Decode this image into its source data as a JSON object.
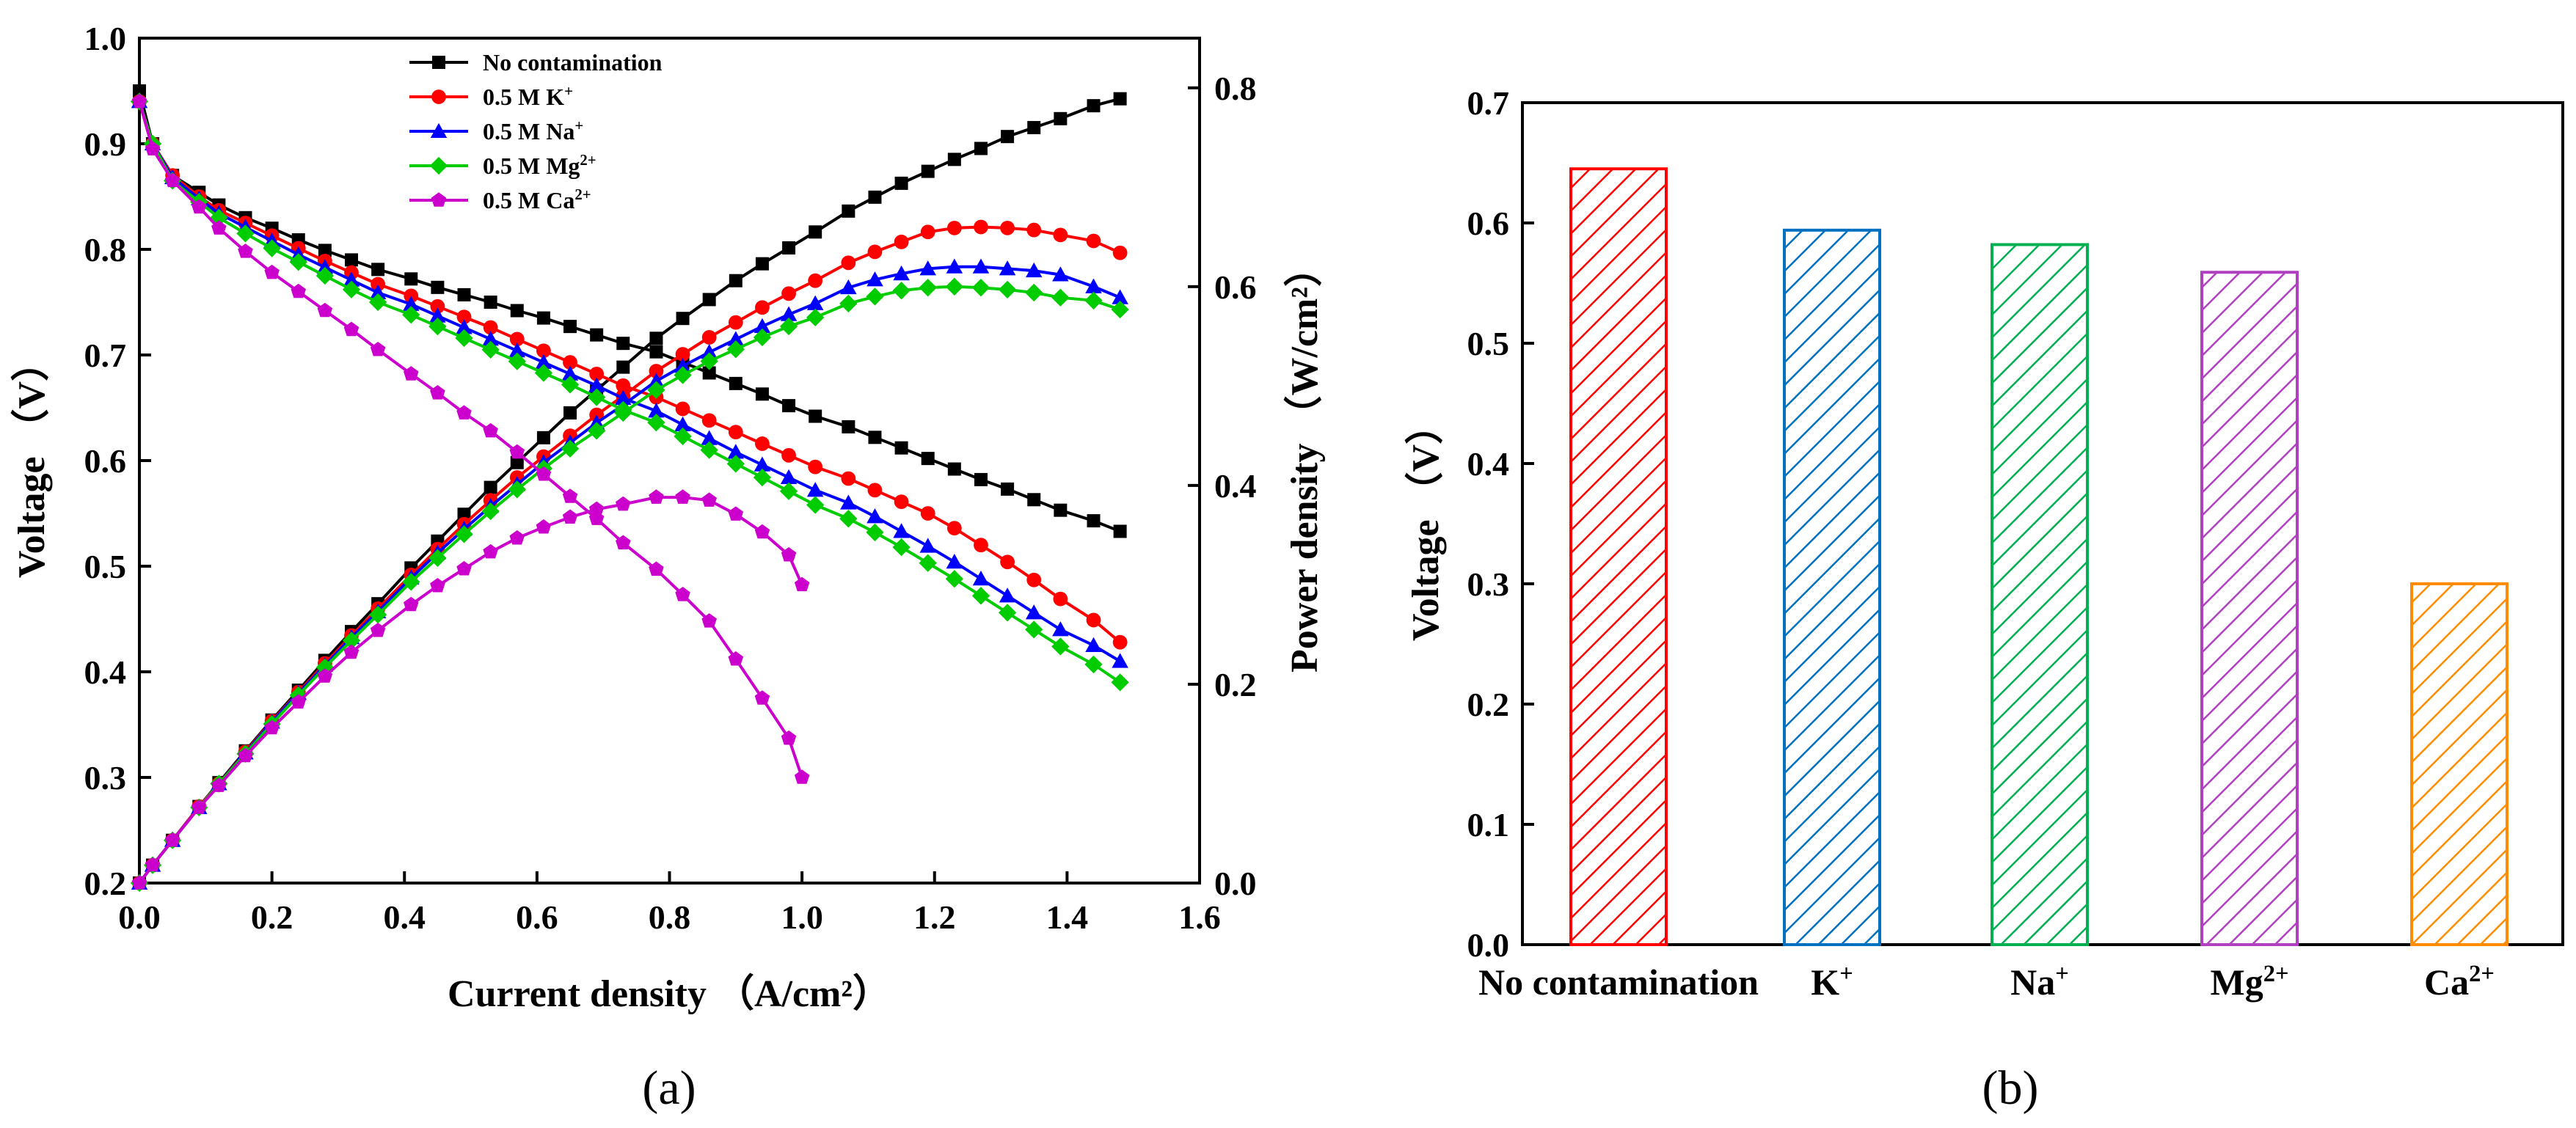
{
  "chart_data": [
    {
      "type": "line",
      "caption": "(a)",
      "xlabel": "Current density （A/cm²）",
      "ylabel": "Voltage （V）",
      "y2label": "Power density （W/cm²）",
      "xlim": [
        0.0,
        1.6
      ],
      "ylim": [
        0.2,
        1.0
      ],
      "y2lim": [
        0.0,
        0.85
      ],
      "xticks": [
        "0.0",
        "0.2",
        "0.4",
        "0.6",
        "0.8",
        "1.0",
        "1.2",
        "1.4",
        "1.6"
      ],
      "yticks": [
        "0.2",
        "0.3",
        "0.4",
        "0.5",
        "0.6",
        "0.7",
        "0.8",
        "0.9",
        "1.0"
      ],
      "y2ticks": [
        "0.0",
        "0.2",
        "0.4",
        "0.6",
        "0.8"
      ],
      "legend_position": "top-center",
      "series": [
        {
          "name": "No contamination",
          "legend_base": "No contamination",
          "legend_sup": "",
          "color": "#000000",
          "marker": "square",
          "x": [
            0.0,
            0.02,
            0.05,
            0.09,
            0.12,
            0.16,
            0.2,
            0.24,
            0.28,
            0.32,
            0.36,
            0.41,
            0.45,
            0.49,
            0.53,
            0.57,
            0.61,
            0.65,
            0.69,
            0.73,
            0.78,
            0.82,
            0.86,
            0.9,
            0.94,
            0.98,
            1.02,
            1.07,
            1.11,
            1.15,
            1.19,
            1.23,
            1.27,
            1.31,
            1.35,
            1.39,
            1.44,
            1.48
          ],
          "voltage": [
            0.95,
            0.9,
            0.87,
            0.854,
            0.842,
            0.83,
            0.82,
            0.809,
            0.799,
            0.79,
            0.781,
            0.772,
            0.764,
            0.757,
            0.75,
            0.742,
            0.735,
            0.727,
            0.719,
            0.711,
            0.703,
            0.693,
            0.683,
            0.673,
            0.663,
            0.652,
            0.642,
            0.632,
            0.622,
            0.612,
            0.602,
            0.592,
            0.582,
            0.573,
            0.563,
            0.553,
            0.543,
            0.533
          ],
          "power": [
            0.0,
            0.018,
            0.043,
            0.077,
            0.101,
            0.133,
            0.164,
            0.194,
            0.224,
            0.253,
            0.281,
            0.317,
            0.344,
            0.371,
            0.398,
            0.423,
            0.448,
            0.473,
            0.496,
            0.519,
            0.548,
            0.568,
            0.587,
            0.606,
            0.623,
            0.639,
            0.655,
            0.676,
            0.69,
            0.704,
            0.716,
            0.728,
            0.739,
            0.751,
            0.76,
            0.769,
            0.782,
            0.789
          ]
        },
        {
          "name": "0.5 M K+",
          "legend_base": "0.5 M K",
          "legend_sup": "+",
          "color": "#ff0000",
          "marker": "circle",
          "x": [
            0.0,
            0.02,
            0.05,
            0.09,
            0.12,
            0.16,
            0.2,
            0.24,
            0.28,
            0.32,
            0.36,
            0.41,
            0.45,
            0.49,
            0.53,
            0.57,
            0.61,
            0.65,
            0.69,
            0.73,
            0.78,
            0.82,
            0.86,
            0.9,
            0.94,
            0.98,
            1.02,
            1.07,
            1.11,
            1.15,
            1.19,
            1.23,
            1.27,
            1.31,
            1.35,
            1.39,
            1.44,
            1.48
          ],
          "voltage": [
            0.94,
            0.9,
            0.87,
            0.85,
            0.837,
            0.825,
            0.813,
            0.801,
            0.789,
            0.778,
            0.767,
            0.756,
            0.746,
            0.736,
            0.726,
            0.715,
            0.704,
            0.693,
            0.682,
            0.671,
            0.66,
            0.649,
            0.638,
            0.627,
            0.616,
            0.605,
            0.594,
            0.583,
            0.572,
            0.561,
            0.55,
            0.536,
            0.52,
            0.504,
            0.487,
            0.469,
            0.449,
            0.428
          ],
          "power": [
            0.0,
            0.018,
            0.043,
            0.077,
            0.1,
            0.132,
            0.163,
            0.192,
            0.221,
            0.249,
            0.276,
            0.31,
            0.336,
            0.361,
            0.385,
            0.408,
            0.429,
            0.45,
            0.471,
            0.49,
            0.515,
            0.532,
            0.549,
            0.564,
            0.579,
            0.593,
            0.606,
            0.624,
            0.635,
            0.645,
            0.655,
            0.659,
            0.66,
            0.659,
            0.657,
            0.652,
            0.646,
            0.634
          ]
        },
        {
          "name": "0.5 M Na+",
          "legend_base": "0.5 M Na",
          "legend_sup": "+",
          "color": "#0000ff",
          "marker": "triangle",
          "x": [
            0.0,
            0.02,
            0.05,
            0.09,
            0.12,
            0.16,
            0.2,
            0.24,
            0.28,
            0.32,
            0.36,
            0.41,
            0.45,
            0.49,
            0.53,
            0.57,
            0.61,
            0.65,
            0.69,
            0.73,
            0.78,
            0.82,
            0.86,
            0.9,
            0.94,
            0.98,
            1.02,
            1.07,
            1.11,
            1.15,
            1.19,
            1.23,
            1.27,
            1.31,
            1.35,
            1.39,
            1.44,
            1.48
          ],
          "voltage": [
            0.94,
            0.9,
            0.868,
            0.848,
            0.834,
            0.821,
            0.808,
            0.795,
            0.783,
            0.771,
            0.759,
            0.748,
            0.737,
            0.726,
            0.715,
            0.704,
            0.693,
            0.682,
            0.671,
            0.659,
            0.647,
            0.634,
            0.621,
            0.608,
            0.596,
            0.584,
            0.572,
            0.56,
            0.547,
            0.533,
            0.519,
            0.504,
            0.488,
            0.472,
            0.456,
            0.44,
            0.425,
            0.41
          ],
          "power": [
            0.0,
            0.018,
            0.043,
            0.076,
            0.1,
            0.131,
            0.162,
            0.191,
            0.219,
            0.247,
            0.273,
            0.307,
            0.332,
            0.356,
            0.379,
            0.401,
            0.423,
            0.443,
            0.463,
            0.481,
            0.505,
            0.52,
            0.534,
            0.547,
            0.56,
            0.572,
            0.583,
            0.599,
            0.607,
            0.613,
            0.618,
            0.62,
            0.62,
            0.618,
            0.616,
            0.612,
            0.6,
            0.589
          ]
        },
        {
          "name": "0.5 M Mg2+",
          "legend_base": "0.5 M Mg",
          "legend_sup": "2+",
          "color": "#00cc00",
          "marker": "diamond",
          "x": [
            0.0,
            0.02,
            0.05,
            0.09,
            0.12,
            0.16,
            0.2,
            0.24,
            0.28,
            0.32,
            0.36,
            0.41,
            0.45,
            0.49,
            0.53,
            0.57,
            0.61,
            0.65,
            0.69,
            0.73,
            0.78,
            0.82,
            0.86,
            0.9,
            0.94,
            0.98,
            1.02,
            1.07,
            1.11,
            1.15,
            1.19,
            1.23,
            1.27,
            1.31,
            1.35,
            1.39,
            1.44,
            1.48
          ],
          "voltage": [
            0.94,
            0.9,
            0.865,
            0.845,
            0.83,
            0.815,
            0.801,
            0.788,
            0.775,
            0.762,
            0.75,
            0.738,
            0.727,
            0.716,
            0.705,
            0.694,
            0.683,
            0.672,
            0.66,
            0.648,
            0.636,
            0.623,
            0.61,
            0.597,
            0.584,
            0.571,
            0.558,
            0.545,
            0.532,
            0.518,
            0.503,
            0.488,
            0.472,
            0.456,
            0.44,
            0.424,
            0.407,
            0.39
          ],
          "power": [
            0.0,
            0.018,
            0.043,
            0.076,
            0.1,
            0.13,
            0.16,
            0.189,
            0.217,
            0.244,
            0.27,
            0.303,
            0.327,
            0.351,
            0.374,
            0.396,
            0.417,
            0.437,
            0.455,
            0.473,
            0.496,
            0.511,
            0.525,
            0.537,
            0.549,
            0.56,
            0.569,
            0.583,
            0.59,
            0.596,
            0.599,
            0.6,
            0.599,
            0.597,
            0.594,
            0.589,
            0.586,
            0.577
          ]
        },
        {
          "name": "0.5 M Ca2+",
          "legend_base": "0.5 M Ca",
          "legend_sup": "2+",
          "color": "#cc00cc",
          "marker": "pentagon",
          "x": [
            0.0,
            0.02,
            0.05,
            0.09,
            0.12,
            0.16,
            0.2,
            0.24,
            0.28,
            0.32,
            0.36,
            0.41,
            0.45,
            0.49,
            0.53,
            0.57,
            0.61,
            0.65,
            0.69,
            0.73,
            0.78,
            0.82,
            0.86,
            0.9,
            0.94,
            0.98,
            1.0
          ],
          "voltage": [
            0.94,
            0.895,
            0.865,
            0.84,
            0.82,
            0.798,
            0.778,
            0.76,
            0.742,
            0.724,
            0.705,
            0.682,
            0.664,
            0.645,
            0.628,
            0.608,
            0.587,
            0.566,
            0.545,
            0.522,
            0.497,
            0.473,
            0.448,
            0.412,
            0.375,
            0.337,
            0.3
          ],
          "power": [
            0.0,
            0.018,
            0.043,
            0.076,
            0.098,
            0.128,
            0.156,
            0.182,
            0.208,
            0.232,
            0.254,
            0.28,
            0.299,
            0.316,
            0.333,
            0.347,
            0.358,
            0.368,
            0.376,
            0.381,
            0.388,
            0.388,
            0.385,
            0.371,
            0.353,
            0.33,
            0.3
          ]
        }
      ]
    },
    {
      "type": "bar",
      "caption": "(b)",
      "ylabel": "Voltage （V）",
      "xlabel": "",
      "ylim": [
        0.0,
        0.7
      ],
      "yticks": [
        "0.0",
        "0.1",
        "0.2",
        "0.3",
        "0.4",
        "0.5",
        "0.6",
        "0.7"
      ],
      "categories": [
        "No contamination",
        "K+",
        "Na+",
        "Mg2+",
        "Ca2+"
      ],
      "category_base": [
        "No contamination",
        "K",
        "Na",
        "Mg",
        "Ca"
      ],
      "category_sup": [
        "",
        "+",
        "+",
        "2+",
        "2+"
      ],
      "values": [
        0.645,
        0.594,
        0.582,
        0.559,
        0.3
      ],
      "colors": [
        "#ff0000",
        "#0070c0",
        "#00b050",
        "#b040c0",
        "#ff8c00"
      ],
      "pattern": "diagonal-hatch"
    }
  ]
}
